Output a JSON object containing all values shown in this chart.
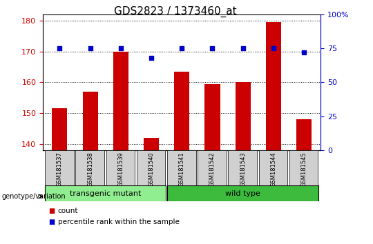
{
  "title": "GDS2823 / 1373460_at",
  "samples": [
    "GSM181537",
    "GSM181538",
    "GSM181539",
    "GSM181540",
    "GSM181541",
    "GSM181542",
    "GSM181543",
    "GSM181544",
    "GSM181545"
  ],
  "counts": [
    151.5,
    157.0,
    170.0,
    142.0,
    163.5,
    159.5,
    160.0,
    179.5,
    148.0
  ],
  "percentiles": [
    75,
    75,
    75,
    68,
    75,
    75,
    75,
    75,
    72
  ],
  "ylim_left": [
    138,
    182
  ],
  "ylim_right": [
    0,
    100
  ],
  "yticks_left": [
    140,
    150,
    160,
    170,
    180
  ],
  "yticks_right": [
    0,
    25,
    50,
    75,
    100
  ],
  "groups": [
    {
      "label": "transgenic mutant",
      "start": 0,
      "end": 4,
      "color": "#90ee90"
    },
    {
      "label": "wild type",
      "start": 4,
      "end": 9,
      "color": "#3dbb3d"
    }
  ],
  "bar_color": "#cc0000",
  "dot_color": "#0000cc",
  "left_axis_color": "#cc0000",
  "right_axis_color": "#0000cc",
  "title_fontsize": 11,
  "tick_fontsize": 8,
  "label_fontsize": 8,
  "sample_bg": "#d0d0d0",
  "fig_bg": "#ffffff"
}
